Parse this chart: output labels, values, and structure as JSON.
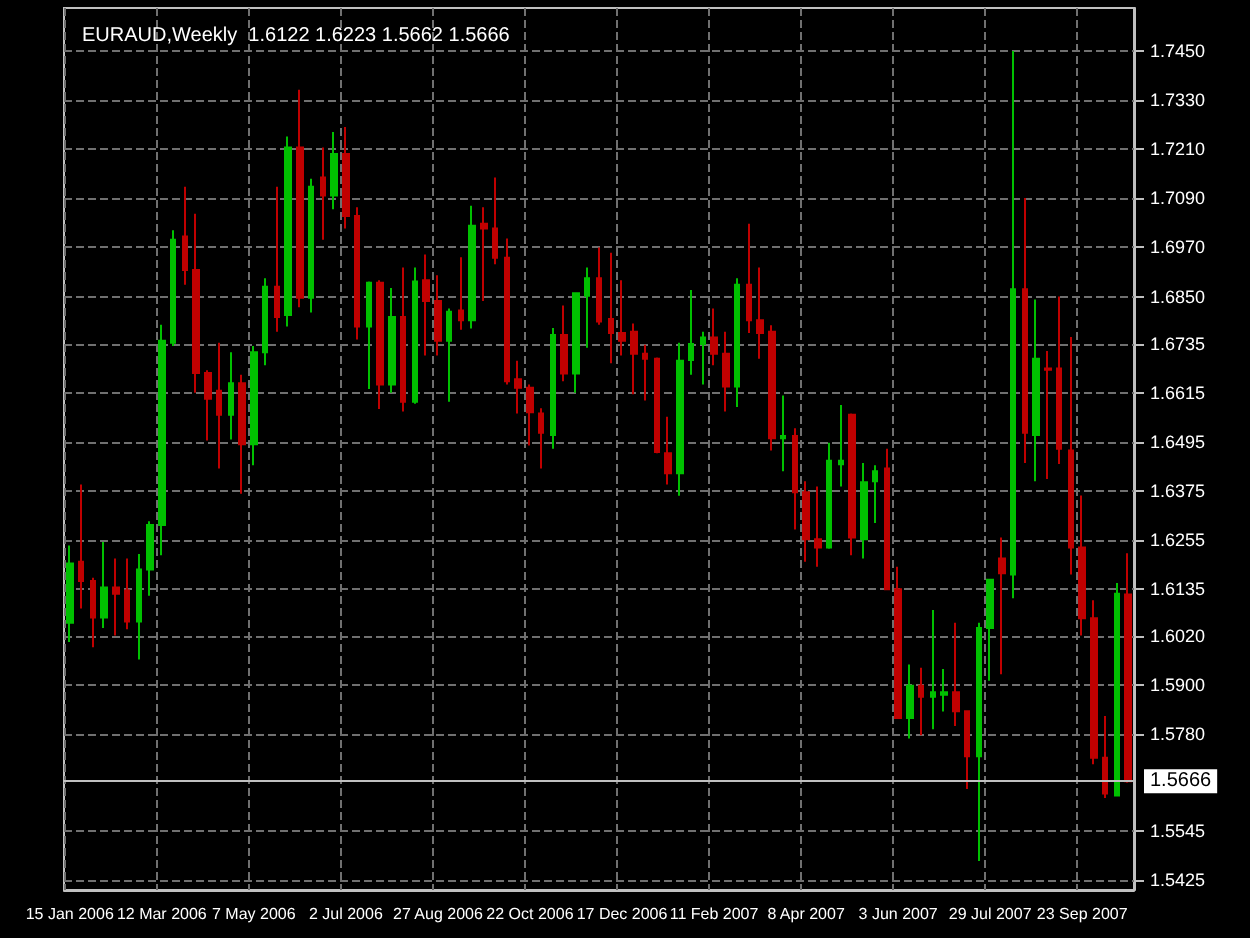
{
  "chart_data": {
    "type": "candlestick",
    "title": "EURAUD,Weekly  1.6122 1.6223 1.5662 1.5666",
    "categories": [
      "15 Jan 2006",
      null,
      null,
      null,
      null,
      null,
      null,
      null,
      "12 Mar 2006",
      null,
      null,
      null,
      null,
      null,
      null,
      null,
      "7 May 2006",
      null,
      null,
      null,
      null,
      null,
      null,
      null,
      "2 Jul 2006",
      null,
      null,
      null,
      null,
      null,
      null,
      null,
      "27 Aug 2006",
      null,
      null,
      null,
      null,
      null,
      null,
      null,
      "22 Oct 2006",
      null,
      null,
      null,
      null,
      null,
      null,
      null,
      "17 Dec 2006",
      null,
      null,
      null,
      null,
      null,
      null,
      null,
      "11 Feb 2007",
      null,
      null,
      null,
      null,
      null,
      null,
      null,
      "8 Apr 2007",
      null,
      null,
      null,
      null,
      null,
      null,
      null,
      "3 Jun 2007",
      null,
      null,
      null,
      null,
      null,
      null,
      null,
      "29 Jul 2007",
      null,
      null,
      null,
      null,
      null,
      null,
      null,
      "23 Sep 2007",
      null,
      null,
      null,
      null
    ],
    "ohlc": [
      [
        1.6053,
        1.6242,
        1.6006,
        1.6198
      ],
      [
        1.6202,
        1.6391,
        1.6088,
        1.6155
      ],
      [
        1.6155,
        1.6163,
        1.5993,
        1.6066
      ],
      [
        1.6066,
        1.625,
        1.604,
        1.6139
      ],
      [
        1.6139,
        1.621,
        1.6022,
        1.6124
      ],
      [
        1.6132,
        1.621,
        1.6037,
        1.6056
      ],
      [
        1.6056,
        1.6221,
        1.5963,
        1.6183
      ],
      [
        1.6183,
        1.6301,
        1.6119,
        1.6292
      ],
      [
        1.6292,
        1.6781,
        1.6218,
        1.6742
      ],
      [
        1.6737,
        1.7012,
        1.6729,
        1.6989
      ],
      [
        1.6997,
        1.7118,
        1.6879,
        1.6915
      ],
      [
        1.6915,
        1.7052,
        1.6615,
        1.6663
      ],
      [
        1.6663,
        1.667,
        1.6498,
        1.66
      ],
      [
        1.662,
        1.6737,
        1.643,
        1.6561
      ],
      [
        1.6561,
        1.6714,
        1.6501,
        1.6638
      ],
      [
        1.6638,
        1.6659,
        1.6368,
        1.6489
      ],
      [
        1.6489,
        1.6729,
        1.6438,
        1.6714
      ],
      [
        1.6714,
        1.6895,
        1.6682,
        1.6874
      ],
      [
        1.6874,
        1.7118,
        1.6764,
        1.68
      ],
      [
        1.6805,
        1.7241,
        1.6777,
        1.7214
      ],
      [
        1.7214,
        1.7355,
        1.6824,
        1.6847
      ],
      [
        1.6847,
        1.7138,
        1.6811,
        1.7118
      ],
      [
        1.7141,
        1.7214,
        1.6989,
        1.7097
      ],
      [
        1.7097,
        1.7252,
        1.7063,
        1.7198
      ],
      [
        1.7198,
        1.7264,
        1.7016,
        1.7047
      ],
      [
        1.7047,
        1.7068,
        1.6745,
        1.6777
      ],
      [
        1.6777,
        1.6887,
        1.6624,
        1.6884
      ],
      [
        1.6884,
        1.689,
        1.6575,
        1.6635
      ],
      [
        1.6635,
        1.6871,
        1.6615,
        1.68
      ],
      [
        1.68,
        1.6921,
        1.6569,
        1.6593
      ],
      [
        1.6593,
        1.6921,
        1.6588,
        1.6887
      ],
      [
        1.689,
        1.6953,
        1.6706,
        1.6839
      ],
      [
        1.6839,
        1.6902,
        1.6706,
        1.6742
      ],
      [
        1.6742,
        1.6821,
        1.6593,
        1.6813
      ],
      [
        1.6816,
        1.6946,
        1.6769,
        1.6792
      ],
      [
        1.6792,
        1.7072,
        1.6772,
        1.7023
      ],
      [
        1.7028,
        1.7068,
        1.6839,
        1.7016
      ],
      [
        1.7016,
        1.7141,
        1.6929,
        1.6945
      ],
      [
        1.6945,
        1.6992,
        1.6635,
        1.6643
      ],
      [
        1.6648,
        1.6693,
        1.6564,
        1.6627
      ],
      [
        1.6627,
        1.6635,
        1.6486,
        1.6567
      ],
      [
        1.6564,
        1.6577,
        1.643,
        1.6517
      ],
      [
        1.6512,
        1.6773,
        1.6478,
        1.6756
      ],
      [
        1.6756,
        1.6828,
        1.6643,
        1.6662
      ],
      [
        1.6662,
        1.686,
        1.6615,
        1.6858
      ],
      [
        1.6852,
        1.6921,
        1.6725,
        1.6895
      ],
      [
        1.6895,
        1.697,
        1.6781,
        1.6789
      ],
      [
        1.6795,
        1.6957,
        1.6687,
        1.6761
      ],
      [
        1.6761,
        1.689,
        1.6706,
        1.6742
      ],
      [
        1.6764,
        1.6784,
        1.6611,
        1.671
      ],
      [
        1.671,
        1.6732,
        1.6596,
        1.6698
      ],
      [
        1.6698,
        1.6701,
        1.6467,
        1.647
      ],
      [
        1.6467,
        1.6556,
        1.6391,
        1.6418
      ],
      [
        1.6418,
        1.6737,
        1.6363,
        1.6693
      ],
      [
        1.6695,
        1.6866,
        1.6659,
        1.6734
      ],
      [
        1.6734,
        1.6764,
        1.6635,
        1.675
      ],
      [
        1.675,
        1.6821,
        1.6682,
        1.671
      ],
      [
        1.671,
        1.6764,
        1.6569,
        1.663
      ],
      [
        1.663,
        1.6895,
        1.658,
        1.6879
      ],
      [
        1.6879,
        1.7028,
        1.6761,
        1.6792
      ],
      [
        1.6792,
        1.6921,
        1.6698,
        1.6761
      ],
      [
        1.6764,
        1.678,
        1.6474,
        1.6504
      ],
      [
        1.6504,
        1.6608,
        1.6423,
        1.6509
      ],
      [
        1.6509,
        1.6528,
        1.6281,
        1.6372
      ],
      [
        1.6372,
        1.6399,
        1.6202,
        1.6257
      ],
      [
        1.6257,
        1.6386,
        1.619,
        1.6237
      ],
      [
        1.6237,
        1.6493,
        1.6234,
        1.6449
      ],
      [
        1.644,
        1.6585,
        1.6386,
        1.6449
      ],
      [
        1.6561,
        1.6564,
        1.6218,
        1.6261
      ],
      [
        1.6257,
        1.6443,
        1.621,
        1.6396
      ],
      [
        1.6399,
        1.6438,
        1.6297,
        1.6423
      ],
      [
        1.643,
        1.6478,
        1.6135,
        1.6135
      ],
      [
        1.6135,
        1.619,
        1.582,
        1.582
      ],
      [
        1.582,
        1.5951,
        1.577,
        1.5899
      ],
      [
        1.5899,
        1.5943,
        1.5778,
        1.5872
      ],
      [
        1.5872,
        1.6084,
        1.5793,
        1.5883
      ],
      [
        1.5877,
        1.594,
        1.5836,
        1.5883
      ],
      [
        1.5883,
        1.6053,
        1.5801,
        1.5837
      ],
      [
        1.5837,
        1.5837,
        1.5647,
        1.5727
      ],
      [
        1.5727,
        1.6053,
        1.5471,
        1.604
      ],
      [
        1.604,
        1.6158,
        1.5911,
        1.6158
      ],
      [
        1.621,
        1.6261,
        1.5927,
        1.6174
      ],
      [
        1.6171,
        1.745,
        1.6113,
        1.6868
      ],
      [
        1.6868,
        1.7091,
        1.6443,
        1.6517
      ],
      [
        1.6512,
        1.6843,
        1.6399,
        1.6698
      ],
      [
        1.6674,
        1.6717,
        1.6404,
        1.6671
      ],
      [
        1.6674,
        1.685,
        1.6441,
        1.6478
      ],
      [
        1.6474,
        1.6751,
        1.6171,
        1.6237
      ],
      [
        1.6237,
        1.6364,
        1.6022,
        1.6064
      ],
      [
        1.6064,
        1.6108,
        1.5707,
        1.5723
      ],
      [
        1.5723,
        1.5825,
        1.5625,
        1.5636
      ],
      [
        1.5631,
        1.615,
        1.5631,
        1.6124
      ],
      [
        1.6122,
        1.6223,
        1.5662,
        1.5666
      ]
    ],
    "colors": [
      "#00c000",
      "#c00000",
      "#c00000",
      "#00c000",
      "#c00000",
      "#c00000",
      "#00c000",
      "#00c000",
      "#00c000",
      "#00c000",
      "#c00000",
      "#c00000",
      "#c00000",
      "#c00000",
      "#00c000",
      "#c00000",
      "#00c000",
      "#00c000",
      "#c00000",
      "#00c000",
      "#c00000",
      "#00c000",
      "#c00000",
      "#00c000",
      "#c00000",
      "#c00000",
      "#00c000",
      "#c00000",
      "#00c000",
      "#c00000",
      "#00c000",
      "#c00000",
      "#c00000",
      "#00c000",
      "#c00000",
      "#00c000",
      "#c00000",
      "#c00000",
      "#c00000",
      "#c00000",
      "#c00000",
      "#c00000",
      "#00c000",
      "#c00000",
      "#00c000",
      "#00c000",
      "#c00000",
      "#c00000",
      "#c00000",
      "#c00000",
      "#c00000",
      "#c00000",
      "#c00000",
      "#00c000",
      "#00c000",
      "#00c000",
      "#c00000",
      "#c00000",
      "#00c000",
      "#c00000",
      "#c00000",
      "#c00000",
      "#00c000",
      "#c00000",
      "#c00000",
      "#c00000",
      "#00c000",
      "#00c000",
      "#c00000",
      "#00c000",
      "#00c000",
      "#c00000",
      "#c00000",
      "#00c000",
      "#c00000",
      "#00c000",
      "#00c000",
      "#c00000",
      "#c00000",
      "#00c000",
      "#00c000",
      "#c00000",
      "#00c000",
      "#c00000",
      "#00c000",
      "#c00000",
      "#c00000",
      "#c00000",
      "#c00000",
      "#c00000",
      "#c00000",
      "#00c000",
      "#c00000"
    ],
    "ylim": [
      1.54,
      1.7555
    ],
    "yticks": [
      {
        "value": 1.5425,
        "label": "1.5425"
      },
      {
        "value": 1.5545,
        "label": "1.5545"
      },
      {
        "value": 1.578,
        "label": "1.5780"
      },
      {
        "value": 1.59,
        "label": "1.5900"
      },
      {
        "value": 1.602,
        "label": "1.6020"
      },
      {
        "value": 1.6135,
        "label": "1.6135"
      },
      {
        "value": 1.6255,
        "label": "1.6255"
      },
      {
        "value": 1.6375,
        "label": "1.6375"
      },
      {
        "value": 1.6495,
        "label": "1.6495"
      },
      {
        "value": 1.6615,
        "label": "1.6615"
      },
      {
        "value": 1.6735,
        "label": "1.6735"
      },
      {
        "value": 1.685,
        "label": "1.6850"
      },
      {
        "value": 1.697,
        "label": "1.6970"
      },
      {
        "value": 1.709,
        "label": "1.7090"
      },
      {
        "value": 1.721,
        "label": "1.7210"
      },
      {
        "value": 1.733,
        "label": "1.7330"
      },
      {
        "value": 1.745,
        "label": "1.7450"
      }
    ],
    "ref_lines": [
      {
        "axis": "y",
        "value": 1.5666,
        "label": "1.5666",
        "color": "#c0c0c0"
      }
    ],
    "grid": true
  }
}
